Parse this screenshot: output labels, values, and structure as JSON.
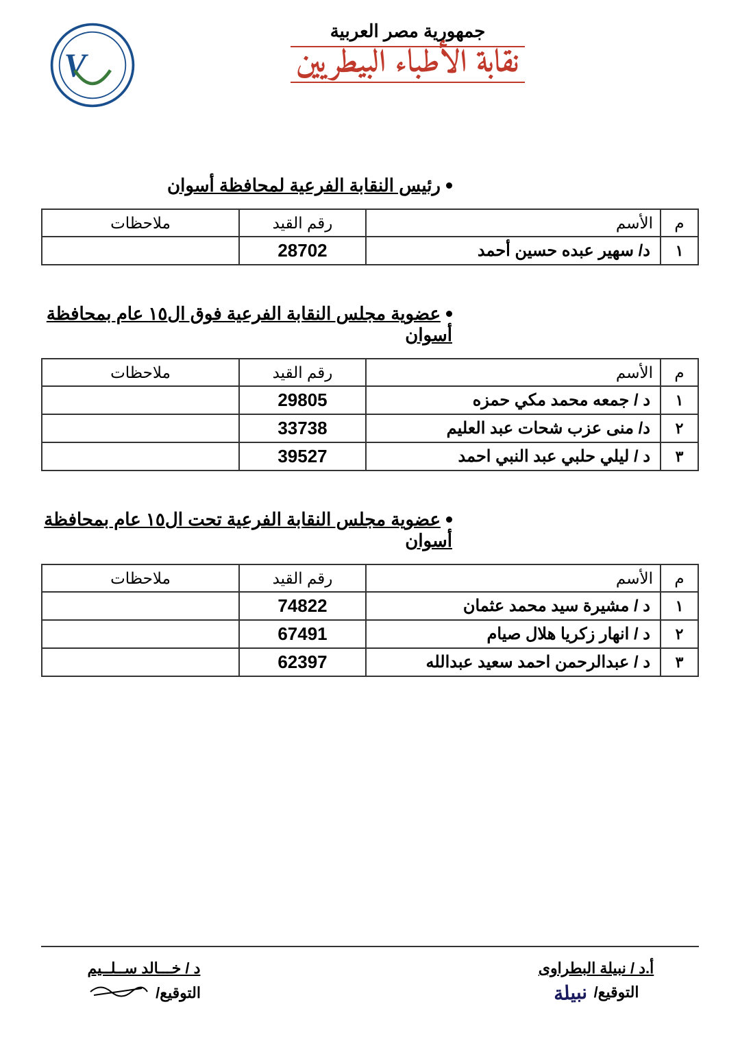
{
  "header": {
    "country": "جمهورية مصر العربية",
    "org_name": "نقابة الأطباء البيطريين"
  },
  "table": {
    "columns": {
      "index": "م",
      "name": "الأسم",
      "reg_no": "رقم القيد",
      "notes": "ملاحظات"
    }
  },
  "sections": [
    {
      "title": "رئيس النقابة الفرعية لمحافظة أسوان",
      "rows": [
        {
          "idx": "١",
          "name": "د/ سهير عبده حسين أحمد",
          "reg": "28702",
          "notes": ""
        }
      ]
    },
    {
      "title": "عضوية مجلس النقابة الفرعية فوق ال١٥ عام بمحافظة أسوان",
      "rows": [
        {
          "idx": "١",
          "name": "د / جمعه محمد مكي حمزه",
          "reg": "29805",
          "notes": ""
        },
        {
          "idx": "٢",
          "name": "د/ منى عزب شحات عبد العليم",
          "reg": "33738",
          "notes": ""
        },
        {
          "idx": "٣",
          "name": "د / ليلي حلبي عبد النبي احمد",
          "reg": "39527",
          "notes": ""
        }
      ]
    },
    {
      "title": "عضوية مجلس النقابة الفرعية تحت ال١٥ عام بمحافظة أسوان",
      "rows": [
        {
          "idx": "١",
          "name": "د / مشيرة سيد محمد عثمان",
          "reg": "74822",
          "notes": ""
        },
        {
          "idx": "٢",
          "name": "د / انهار زكريا هلال صيام",
          "reg": "67491",
          "notes": ""
        },
        {
          "idx": "٣",
          "name": "د / عبدالرحمن احمد سعيد عبدالله",
          "reg": "62397",
          "notes": ""
        }
      ]
    }
  ],
  "footer": {
    "right": {
      "name": "أ.د / نبيلة البطراوى",
      "label": "التوقيع/"
    },
    "left": {
      "name": "د / خـــالد ســلــيم",
      "label": "التوقيع/"
    }
  },
  "style": {
    "text_color": "#000000",
    "accent_color": "#c0392b",
    "border_color": "#333333",
    "background": "#ffffff",
    "title_fontsize": 26,
    "cell_fontsize": 24
  }
}
